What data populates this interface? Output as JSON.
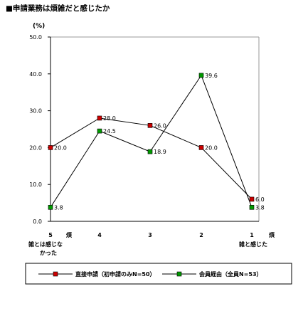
{
  "title": "■申請業務は煩雑だと感じたか",
  "chart_data": {
    "type": "line",
    "title": "申請業務は煩雑だと感じたか",
    "ylabel": "(%)",
    "ylim": [
      0,
      50
    ],
    "yticks": [
      "0.0",
      "10.0",
      "20.0",
      "30.0",
      "40.0",
      "50.0"
    ],
    "ytick_values": [
      0,
      10,
      20,
      30,
      40,
      50
    ],
    "categories": [
      "5",
      "4",
      "3",
      "2",
      "1"
    ],
    "x_end_labels": {
      "left": [
        "煩",
        "雑とは感じな",
        "かった"
      ],
      "right": [
        "煩",
        "雑と感じた"
      ]
    },
    "grid": false,
    "legend_position": "bottom",
    "series": [
      {
        "name": "直接申請（初申請のみN=50）",
        "color": "#cc0000",
        "values": [
          20.0,
          28.0,
          26.0,
          20.0,
          6.0
        ],
        "labels": [
          "20.0",
          "28.0",
          "26.0",
          "20.0",
          "6.0"
        ]
      },
      {
        "name": "会員経由（全員N=53）",
        "color": "#009900",
        "values": [
          3.8,
          24.5,
          18.9,
          39.6,
          3.8
        ],
        "labels": [
          "3.8",
          "24.5",
          "18.9",
          "39.6",
          "3.8"
        ]
      }
    ]
  }
}
